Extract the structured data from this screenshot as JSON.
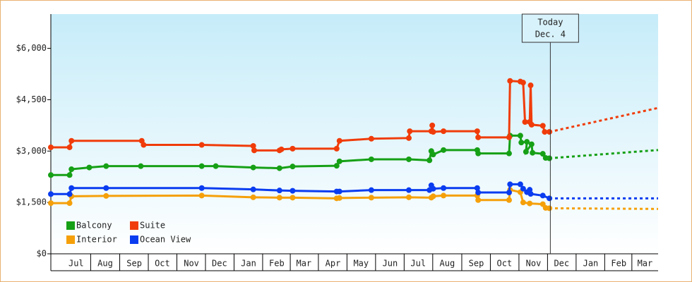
{
  "chart_data": {
    "type": "line",
    "ylim": [
      0,
      7000
    ],
    "yticks": [
      {
        "value": 0,
        "label": "$0"
      },
      {
        "value": 1500,
        "label": "$1,500"
      },
      {
        "value": 3000,
        "label": "$3,000"
      },
      {
        "value": 4500,
        "label": "$4,500"
      },
      {
        "value": 6000,
        "label": "$6,000"
      }
    ],
    "xlim": [
      -12,
      636
    ],
    "xticks": [
      {
        "value": 15,
        "label": "Jul"
      },
      {
        "value": 46,
        "label": "Aug"
      },
      {
        "value": 77,
        "label": "Sep"
      },
      {
        "value": 107,
        "label": "Oct"
      },
      {
        "value": 138,
        "label": "Nov"
      },
      {
        "value": 168,
        "label": "Dec"
      },
      {
        "value": 199,
        "label": "Jan"
      },
      {
        "value": 229,
        "label": "Feb"
      },
      {
        "value": 258,
        "label": "Mar"
      },
      {
        "value": 289,
        "label": "Apr"
      },
      {
        "value": 319,
        "label": "May"
      },
      {
        "value": 350,
        "label": "Jun"
      },
      {
        "value": 380,
        "label": "Jul"
      },
      {
        "value": 411,
        "label": "Aug"
      },
      {
        "value": 442,
        "label": "Sep"
      },
      {
        "value": 472,
        "label": "Oct"
      },
      {
        "value": 503,
        "label": "Nov"
      },
      {
        "value": 533,
        "label": "Dec"
      },
      {
        "value": 564,
        "label": "Jan"
      },
      {
        "value": 594,
        "label": "Feb"
      },
      {
        "value": 622,
        "label": "Mar"
      }
    ],
    "annotation": {
      "lines": [
        "Today",
        "Dec. 4"
      ],
      "x": 521
    },
    "legend": "bottom-left",
    "series": [
      {
        "name": "Balcony",
        "color": "#16a016",
        "x": [
          -12,
          8,
          10,
          29,
          47,
          84,
          149,
          164,
          204,
          232,
          246,
          293,
          296,
          330,
          370,
          392,
          394,
          396,
          407,
          443,
          444,
          477,
          478,
          489,
          490,
          496,
          495,
          501,
          502,
          513,
          516,
          520
        ],
        "values": [
          2300,
          2300,
          2470,
          2520,
          2560,
          2560,
          2560,
          2560,
          2520,
          2500,
          2550,
          2570,
          2700,
          2760,
          2760,
          2730,
          3000,
          2900,
          3030,
          3030,
          2930,
          2930,
          3450,
          3450,
          3250,
          3270,
          2980,
          3200,
          2950,
          2920,
          2800,
          2790
        ],
        "forecast": {
          "x": [
            520,
            636
          ],
          "values": [
            2790,
            3030
          ]
        }
      },
      {
        "name": "Suite",
        "color": "#f03c0a",
        "x": [
          -12,
          8,
          10,
          85,
          87,
          149,
          204,
          205,
          232,
          234,
          246,
          293,
          296,
          330,
          370,
          371,
          394,
          395,
          396,
          407,
          443,
          444,
          477,
          478,
          489,
          492,
          494,
          499,
          500,
          501,
          513,
          515,
          520
        ],
        "values": [
          3110,
          3110,
          3300,
          3300,
          3180,
          3180,
          3150,
          3020,
          3020,
          3050,
          3070,
          3070,
          3300,
          3360,
          3380,
          3580,
          3580,
          3750,
          3560,
          3580,
          3580,
          3400,
          3400,
          5050,
          5030,
          5000,
          3850,
          3850,
          4920,
          3770,
          3740,
          3560,
          3560
        ],
        "forecast": {
          "x": [
            520,
            636
          ],
          "values": [
            3560,
            4260
          ]
        }
      },
      {
        "name": "Interior",
        "color": "#f5a00a",
        "x": [
          -12,
          8,
          10,
          47,
          149,
          204,
          232,
          246,
          293,
          296,
          330,
          370,
          394,
          396,
          407,
          443,
          444,
          477,
          478,
          489,
          492,
          499,
          513,
          516,
          520
        ],
        "values": [
          1480,
          1480,
          1680,
          1690,
          1700,
          1650,
          1640,
          1640,
          1620,
          1630,
          1640,
          1650,
          1640,
          1680,
          1700,
          1700,
          1570,
          1570,
          1870,
          1800,
          1500,
          1470,
          1450,
          1340,
          1330
        ],
        "forecast": {
          "x": [
            520,
            636
          ],
          "values": [
            1330,
            1310
          ]
        }
      },
      {
        "name": "Ocean View",
        "color": "#0a3cf0",
        "x": [
          -12,
          8,
          10,
          47,
          149,
          204,
          232,
          246,
          293,
          296,
          330,
          370,
          392,
          394,
          396,
          407,
          443,
          444,
          477,
          478,
          489,
          492,
          496,
          499,
          500,
          513,
          520
        ],
        "values": [
          1744,
          1744,
          1920,
          1920,
          1920,
          1880,
          1850,
          1840,
          1820,
          1820,
          1860,
          1860,
          1860,
          2000,
          1900,
          1920,
          1920,
          1790,
          1790,
          2030,
          2030,
          1900,
          1800,
          1870,
          1750,
          1700,
          1620
        ],
        "forecast": {
          "x": [
            520,
            636
          ],
          "values": [
            1620,
            1620
          ]
        }
      }
    ]
  }
}
